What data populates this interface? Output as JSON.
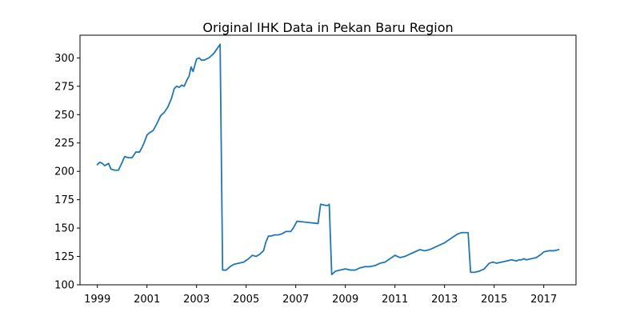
{
  "chart_data": {
    "type": "line",
    "title": "Original IHK Data in Pekan Baru Region",
    "xlabel": "",
    "ylabel": "",
    "xlim": [
      1998.3,
      2018.3
    ],
    "ylim": [
      100,
      320
    ],
    "grid": false,
    "legend": "none",
    "line_color": "#1f77b4",
    "x_ticks": [
      1999,
      2001,
      2003,
      2005,
      2007,
      2009,
      2011,
      2013,
      2015,
      2017
    ],
    "x_tick_labels": [
      "1999",
      "2001",
      "2003",
      "2005",
      "2007",
      "2009",
      "2011",
      "2013",
      "2015",
      "2017"
    ],
    "y_ticks": [
      100,
      125,
      150,
      175,
      200,
      225,
      250,
      275,
      300
    ],
    "y_tick_labels": [
      "100",
      "125",
      "150",
      "175",
      "200",
      "225",
      "250",
      "275",
      "300"
    ],
    "series": [
      {
        "name": "",
        "x": [
          1999.0,
          1999.1,
          1999.2,
          1999.3,
          1999.45,
          1999.55,
          1999.7,
          1999.85,
          2000.0,
          2000.1,
          2000.25,
          2000.4,
          2000.55,
          2000.7,
          2000.8,
          2000.9,
          2001.0,
          2001.1,
          2001.25,
          2001.4,
          2001.55,
          2001.7,
          2001.85,
          2002.0,
          2002.1,
          2002.2,
          2002.3,
          2002.4,
          2002.5,
          2002.6,
          2002.7,
          2002.78,
          2002.86,
          2003.0,
          2003.1,
          2003.2,
          2003.3,
          2003.5,
          2003.7,
          2003.95,
          2004.05,
          2004.2,
          2004.35,
          2004.5,
          2004.7,
          2004.9,
          2005.1,
          2005.25,
          2005.4,
          2005.55,
          2005.7,
          2005.8,
          2005.9,
          2006.0,
          2006.15,
          2006.3,
          2006.45,
          2006.6,
          2006.8,
          2006.9,
          2007.05,
          2007.9,
          2008.0,
          2008.2,
          2008.3,
          2008.35,
          2008.45,
          2008.6,
          2008.8,
          2009.0,
          2009.2,
          2009.4,
          2009.6,
          2009.8,
          2010.0,
          2010.2,
          2010.4,
          2010.6,
          2010.8,
          2011.0,
          2011.2,
          2011.4,
          2011.6,
          2011.8,
          2012.0,
          2012.2,
          2012.4,
          2012.6,
          2012.8,
          2013.0,
          2013.2,
          2013.4,
          2013.55,
          2013.7,
          2013.95,
          2014.05,
          2014.2,
          2014.4,
          2014.6,
          2014.8,
          2014.95,
          2015.1,
          2015.3,
          2015.5,
          2015.7,
          2015.9,
          2016.0,
          2016.1,
          2016.2,
          2016.3,
          2016.5,
          2016.7,
          2016.9,
          2017.0,
          2017.2,
          2017.4,
          2017.6
        ],
        "y": [
          206,
          208,
          207,
          205,
          207,
          202,
          201,
          201,
          208,
          213,
          212,
          212,
          217,
          217,
          221,
          226,
          232,
          234,
          236,
          242,
          249,
          252,
          257,
          265,
          273,
          275,
          274,
          276,
          275,
          280,
          284,
          292,
          288,
          299,
          300,
          298,
          298,
          300,
          304,
          312,
          113,
          113,
          116,
          118,
          119,
          120,
          123,
          126,
          125,
          127,
          130,
          138,
          143,
          143,
          144,
          144,
          145,
          147,
          147,
          150,
          156,
          154,
          171,
          170,
          170,
          171,
          109,
          112,
          113,
          114,
          113,
          113,
          115,
          116,
          116,
          117,
          119,
          120,
          123,
          126,
          124,
          125,
          127,
          129,
          131,
          130,
          131,
          133,
          135,
          137,
          140,
          143,
          145,
          146,
          146,
          111,
          111,
          112,
          114,
          119,
          120,
          119,
          120,
          121,
          122,
          121,
          122,
          122,
          123,
          122,
          123,
          124,
          127,
          129,
          130,
          130,
          131
        ]
      }
    ]
  }
}
